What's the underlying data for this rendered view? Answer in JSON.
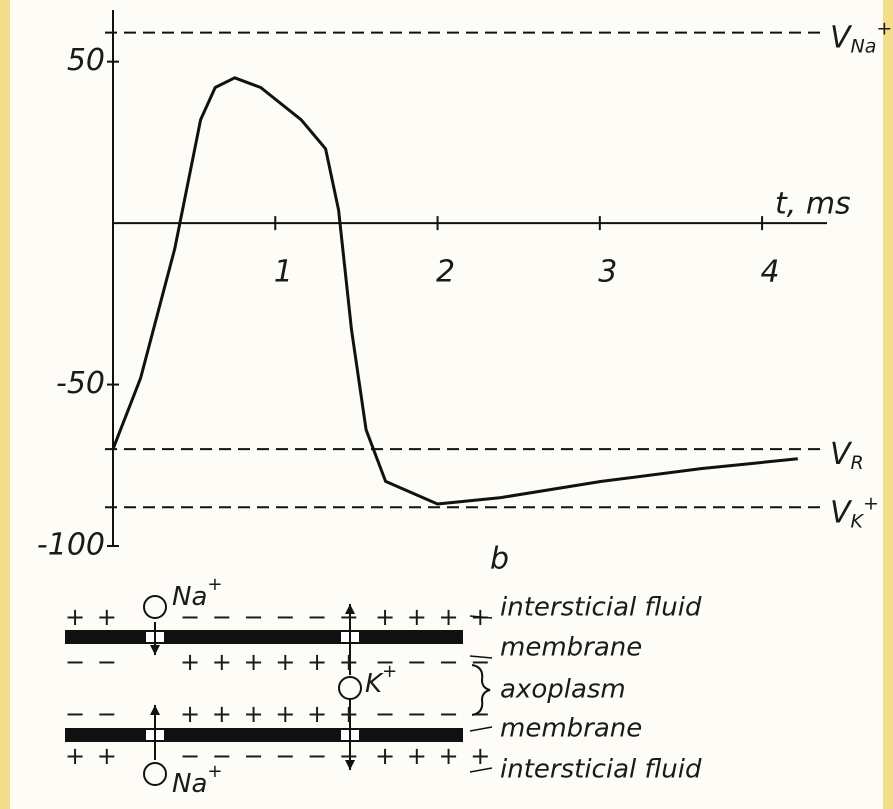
{
  "chart_data": {
    "type": "line",
    "x_label": "t, ms",
    "x": [
      0,
      0.17,
      0.38,
      0.54,
      0.63,
      0.75,
      0.91,
      1.16,
      1.31,
      1.39,
      1.47,
      1.56,
      1.68,
      2.0,
      2.39,
      3.01,
      3.63,
      4.22
    ],
    "series": [
      {
        "color": "#111111",
        "values": [
          -70,
          -48,
          -8,
          32,
          42,
          45,
          42,
          32,
          23,
          4,
          -33,
          -64,
          -80,
          -87,
          -85,
          -80,
          -76,
          -73
        ]
      }
    ],
    "xlim": [
      0,
      4.4
    ],
    "ylim": [
      -100,
      66
    ],
    "xticks": [
      1,
      2,
      3,
      4
    ],
    "yticks": [
      50,
      -50,
      -100
    ],
    "reference_lines": [
      {
        "value": 59,
        "symbol": "V",
        "sub": "Na",
        "sup": "+"
      },
      {
        "value": -70,
        "symbol": "V",
        "sub": "R"
      },
      {
        "value": -88,
        "symbol": "V",
        "sub": "K",
        "sup": "+"
      }
    ]
  },
  "figure_label": "b",
  "diagram": {
    "ions": [
      {
        "label": "Na",
        "sup": "+"
      },
      {
        "label": "K",
        "sup": "+"
      },
      {
        "label": "Na",
        "sup": "+"
      }
    ],
    "charges": [
      [
        "+ +",
        "− − − − − −",
        "+ + + +"
      ],
      [
        "− −",
        "+ + + + + +",
        "− − − −"
      ],
      [
        "− −",
        "+ + + + + +",
        "− − − −"
      ],
      [
        "+ +",
        "− − − − − −",
        "+ + + +"
      ]
    ],
    "labels": [
      "intersticial fluid",
      "membrane",
      "axoplasm",
      "membrane",
      "intersticial fluid"
    ]
  }
}
